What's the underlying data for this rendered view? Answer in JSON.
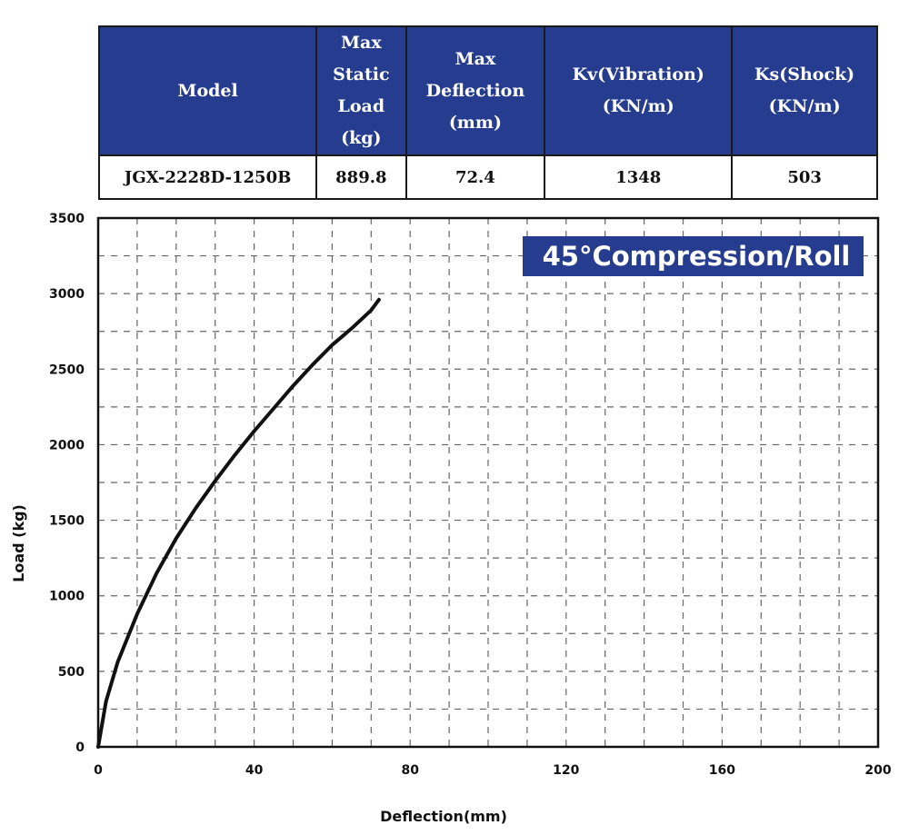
{
  "table": {
    "headers": {
      "model": "Model",
      "max_static_load": [
        "Max",
        "Static",
        "Load",
        "(kg)"
      ],
      "max_deflection": [
        "Max",
        "Deflection",
        "(mm)"
      ],
      "kv": [
        "Kv(Vibration)",
        "(KN/m)"
      ],
      "ks": [
        "Ks(Shock)",
        "(KN/m)"
      ]
    },
    "row": {
      "model": "JGX-2228D-1250B",
      "max_static_load": "889.8",
      "max_deflection": "72.4",
      "kv": "1348",
      "ks": "503"
    },
    "header_color": "#263c8f"
  },
  "chart_data": {
    "type": "line",
    "title": "45°Compression/Roll",
    "xlabel": "Deflection(mm)",
    "ylabel": "Load (kg)",
    "xlim": [
      0,
      200
    ],
    "ylim": [
      0,
      3500
    ],
    "x_ticks": [
      0,
      40,
      80,
      120,
      160,
      200
    ],
    "y_ticks": [
      0,
      500,
      1000,
      1500,
      2000,
      2500,
      3000,
      3500
    ],
    "grid": "dashed",
    "series": [
      {
        "color": "#111111",
        "x": [
          0,
          2,
          5,
          10,
          15,
          20,
          25,
          30,
          35,
          40,
          45,
          50,
          55,
          60,
          65,
          70,
          72
        ],
        "y": [
          0,
          300,
          560,
          880,
          1150,
          1380,
          1580,
          1760,
          1930,
          2090,
          2240,
          2390,
          2530,
          2660,
          2770,
          2890,
          2960
        ]
      }
    ],
    "badge_color": "#263c8f"
  }
}
